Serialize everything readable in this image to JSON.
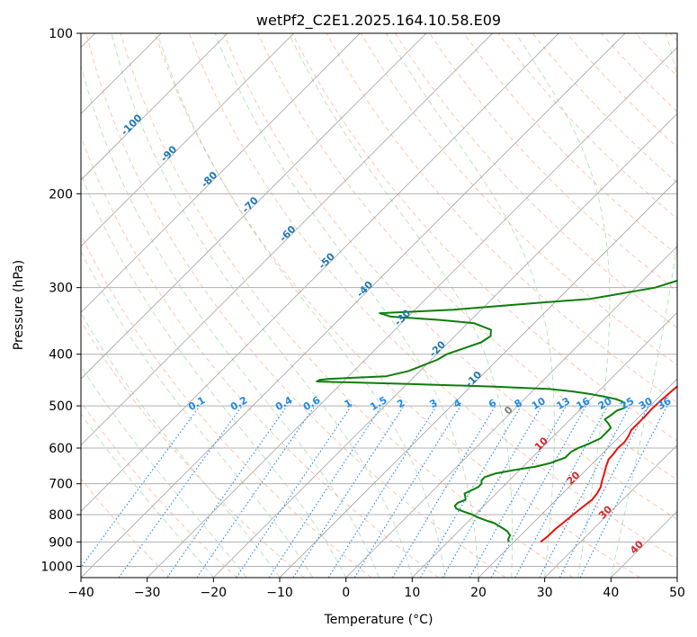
{
  "chart_data": {
    "type": "line",
    "title": "wetPf2_C2E1.2025.164.10.58.E09",
    "xlabel": "Temperature (°C)",
    "ylabel": "Pressure (hPa)",
    "xlim": [
      -40,
      50
    ],
    "ylim": [
      1050,
      100
    ],
    "y_scale": "log",
    "grid": true,
    "x_ticks": [
      "−40",
      "−30",
      "−20",
      "−10",
      "0",
      "10",
      "20",
      "30",
      "40",
      "50"
    ],
    "x_tick_values": [
      -40,
      -30,
      -20,
      -10,
      0,
      10,
      20,
      30,
      40,
      50
    ],
    "y_ticks": [
      "100",
      "200",
      "300",
      "400",
      "500",
      "600",
      "700",
      "800",
      "900",
      "1000"
    ],
    "y_tick_values": [
      100,
      200,
      300,
      400,
      500,
      600,
      700,
      800,
      900,
      1000
    ],
    "series": [
      {
        "color": "#e8120c",
        "p": [
          900,
          880,
          850,
          820,
          800,
          780,
          750,
          730,
          710,
          700,
          690,
          670,
          650,
          630,
          615,
          600,
          585,
          570,
          555,
          540,
          525,
          505,
          490,
          470,
          450,
          430,
          410,
          390,
          370,
          350,
          330,
          310,
          290,
          270,
          250,
          230,
          215,
          200,
          185,
          170,
          155,
          145,
          140,
          135,
          130,
          125,
          120,
          115,
          110,
          105,
          100
        ],
        "values": [
          24,
          24.2,
          24.3,
          24.6,
          24.8,
          25,
          25.4,
          25.2,
          24.8,
          24.4,
          24,
          23.3,
          22.5,
          21.8,
          21.7,
          21.5,
          21.6,
          21.3,
          20.8,
          20.8,
          20.8,
          20.7,
          20.8,
          21,
          21.3,
          21,
          20.4,
          19.7,
          19,
          18.5,
          17.8,
          17,
          16.1,
          15.1,
          14,
          12.8,
          11.8,
          10.5,
          9.1,
          7.6,
          5.8,
          4.4,
          3.6,
          2.8,
          2.2,
          1.8,
          1.6,
          1.9,
          2.4,
          3.2,
          3.8
        ]
      },
      {
        "color": "#0c7e0c",
        "p": [
          900,
          890,
          875,
          860,
          850,
          840,
          830,
          820,
          810,
          800,
          790,
          780,
          770,
          760,
          750,
          740,
          730,
          720,
          710,
          700,
          690,
          680,
          670,
          660,
          650,
          640,
          625,
          610,
          600,
          590,
          575,
          560,
          550,
          540,
          530,
          520,
          510,
          505,
          495,
          490,
          485,
          480,
          475,
          470,
          465,
          460,
          455,
          450,
          447,
          445,
          440,
          430,
          420,
          410,
          400,
          390,
          380,
          370,
          360,
          350,
          345,
          340,
          335,
          330,
          325,
          320,
          315,
          310,
          300,
          290,
          280,
          270,
          260,
          250,
          240,
          230,
          220,
          210,
          200,
          190,
          180,
          170,
          160,
          150,
          140,
          135,
          130,
          125,
          120,
          115,
          110,
          105,
          100
        ],
        "values": [
          19.2,
          18.7,
          18.4,
          17.4,
          16.4,
          15.3,
          14.2,
          12.5,
          10.9,
          9.6,
          7.9,
          6.3,
          5.6,
          5.6,
          6.3,
          5.8,
          5.2,
          5.8,
          6.3,
          6.3,
          5.8,
          5.8,
          6.8,
          9.1,
          11.9,
          13.6,
          15,
          15,
          15.5,
          16.4,
          17.4,
          17.4,
          17.4,
          16.4,
          15.2,
          15.5,
          15.7,
          16.4,
          15.8,
          15,
          13.6,
          11.5,
          9.1,
          6.3,
          2.3,
          -6.8,
          -19.8,
          -34,
          -33.8,
          -32.5,
          -24.3,
          -21.7,
          -20.4,
          -19.1,
          -18.5,
          -16.8,
          -15.1,
          -14.6,
          -15.5,
          -19,
          -24.7,
          -32.6,
          -34.8,
          -24.2,
          -18.1,
          -11.9,
          -5.2,
          -2.5,
          2.9,
          5.5,
          7.7,
          9.1,
          8.4,
          7.1,
          5.7,
          4.5,
          4,
          3.6,
          3,
          2.2,
          1,
          -0.5,
          -1.5,
          -2.5,
          -1.8,
          -2,
          -1.2,
          -2,
          -2.5,
          -1.7,
          -0.6,
          0.6,
          0.9
        ]
      }
    ],
    "isotherm_labels": [
      "-100",
      "-90",
      "-80",
      "-70",
      "-60",
      "-50",
      "-40",
      "-30",
      "-20",
      "-10",
      "0",
      "10",
      "20",
      "30",
      "40"
    ],
    "isotherm_label_values": [
      -100,
      -90,
      -80,
      -70,
      -60,
      -50,
      -40,
      -30,
      -20,
      -10,
      0,
      10,
      20,
      30,
      40
    ],
    "mixing_ratio_labels": [
      "0.1",
      "0.2",
      "0.4",
      "0.6",
      "1",
      "1.5",
      "2",
      "3",
      "4",
      "6",
      "8",
      "10",
      "13",
      "16",
      "20",
      "25",
      "30",
      "36"
    ],
    "mixing_ratio_values": [
      0.1,
      0.2,
      0.4,
      0.6,
      1,
      1.5,
      2,
      3,
      4,
      6,
      8,
      10,
      13,
      16,
      20,
      25,
      30,
      36
    ],
    "colors": {
      "temperature": "#e8120c",
      "dewpoint": "#0c7e0c",
      "isotherm_label_cold": "#1f77b4",
      "isotherm_label_warm": "#d62728",
      "isotherm_label_zero": "#7f7f7f",
      "mixing_ratio": "#1e88e5",
      "dry_adiabat": "#ff7f50",
      "moist_adiabat": "#2ca02c",
      "skew_grid": "#8c8c8c"
    }
  }
}
